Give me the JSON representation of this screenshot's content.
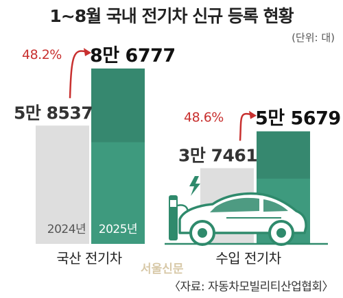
{
  "title": "1~8월 국내 전기차 신규 등록 현황",
  "unit_note": "(단위: 대)",
  "source": "〈자료: 자동차모빌리티산업협회〉",
  "watermark": "서울신문",
  "colors": {
    "bar_2024": "#dedede",
    "bar_2025": "#3e9a7e",
    "bar_2025_dark": "#2f7a63",
    "growth": "#c8302f",
    "car": "#2f8a6c"
  },
  "chart_data": {
    "type": "bar",
    "categories": [
      "국산 전기차",
      "수입 전기차"
    ],
    "series": [
      {
        "name": "2024년",
        "values": [
          58537,
          37461
        ],
        "labels": [
          "5만 8537",
          "3만 7461"
        ]
      },
      {
        "name": "2025년",
        "values": [
          86777,
          55679
        ],
        "labels": [
          "8만 6777",
          "5만 5679"
        ]
      }
    ],
    "growth": [
      "48.2%",
      "48.6%"
    ]
  }
}
